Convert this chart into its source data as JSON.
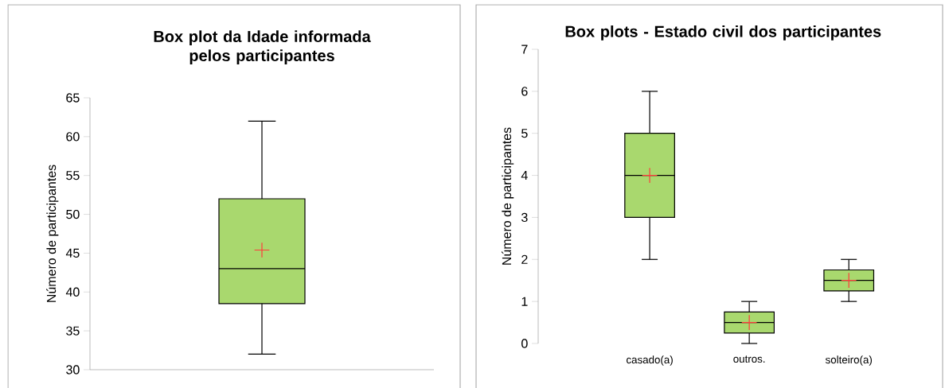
{
  "chart_data": [
    {
      "type": "box",
      "title": "Box plot da Idade informada pelos participantes",
      "ylabel": "Número de participantes",
      "categories": [
        null
      ],
      "ylim": [
        30,
        65
      ],
      "yticks": [
        30,
        35,
        40,
        45,
        50,
        55,
        60,
        65
      ],
      "series": [
        {
          "color": "#a9d86e",
          "boxes": [
            {
              "low": 32,
              "q1": 38.5,
              "median": 43,
              "q3": 52,
              "high": 62,
              "mean": 45.4
            }
          ]
        }
      ]
    },
    {
      "type": "box",
      "title": "Box plots - Estado civil dos participantes",
      "ylabel": "Número de participantes",
      "categories": [
        "casado(a)",
        "outros.",
        "solteiro(a)"
      ],
      "ylim": [
        0,
        7
      ],
      "yticks": [
        0,
        1,
        2,
        3,
        4,
        5,
        6,
        7
      ],
      "series": [
        {
          "color": "#a9d86e",
          "boxes": [
            {
              "low": 2,
              "q1": 3,
              "median": 4,
              "q3": 5,
              "high": 6,
              "mean": 4
            },
            {
              "low": 0,
              "q1": 0.25,
              "median": 0.5,
              "q3": 0.75,
              "high": 1,
              "mean": 0.5
            },
            {
              "low": 1,
              "q1": 1.25,
              "median": 1.5,
              "q3": 1.75,
              "high": 2,
              "mean": 1.5
            }
          ]
        }
      ]
    }
  ]
}
